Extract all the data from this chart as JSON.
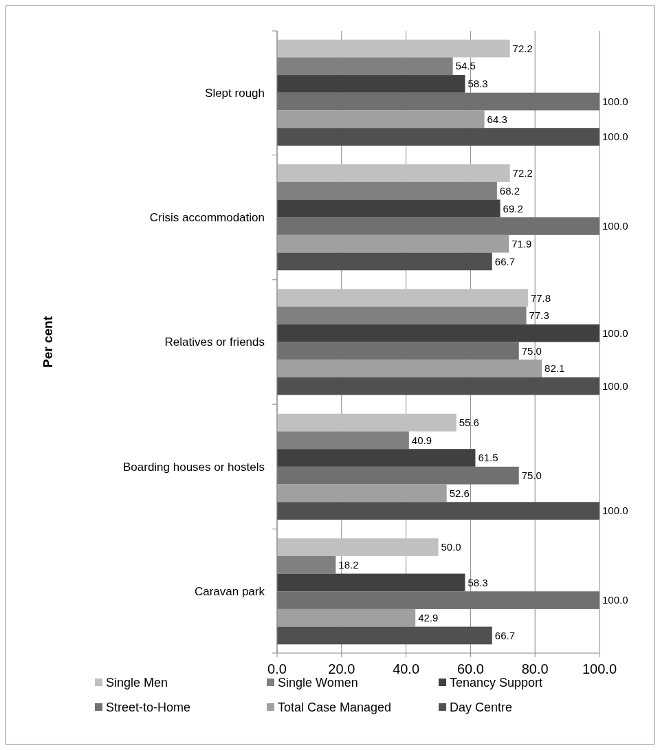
{
  "chart_data": {
    "type": "bar",
    "orientation": "horizontal",
    "annotations": [
      "Per cent"
    ],
    "categories": [
      "Slept rough",
      "Crisis  accommodation",
      "Relatives or friends",
      "Boarding houses or hostels",
      "Caravan park"
    ],
    "series": [
      {
        "name": "Single Men",
        "color": "#c0c0c0",
        "values": [
          72.2,
          72.2,
          77.8,
          55.6,
          50
        ],
        "value_labels": [
          "72.2",
          "72.2",
          "77.8",
          "55.6",
          "50.0"
        ]
      },
      {
        "name": "Single Women",
        "color": "#808080",
        "values": [
          54.5,
          68.2,
          77.3,
          40.9,
          18.2
        ],
        "value_labels": [
          "54.5",
          "68.2",
          "77.3",
          "40.9",
          "18.2"
        ]
      },
      {
        "name": "Tenancy Support",
        "color": "#404040",
        "values": [
          58.3,
          69.2,
          100,
          61.5,
          58.3
        ],
        "value_labels": [
          "58.3",
          "69.2",
          "100.0",
          "61.5",
          "58.3"
        ]
      },
      {
        "name": "Street-to-Home",
        "color": "#707070",
        "values": [
          100,
          100,
          75,
          75,
          100
        ],
        "value_labels": [
          "100.0",
          "100.0",
          "75.0",
          "75.0",
          "100.0"
        ]
      },
      {
        "name": "Total Case Managed",
        "color": "#a0a0a0",
        "values": [
          64.3,
          71.9,
          82.1,
          52.6,
          42.9
        ],
        "value_labels": [
          "64.3",
          "71.9",
          "82.1",
          "52.6",
          "42.9"
        ]
      },
      {
        "name": "Day Centre",
        "color": "#505050",
        "values": [
          100,
          66.7,
          100,
          100,
          66.7
        ],
        "value_labels": [
          "100.0",
          "66.7",
          "100.0",
          "100.0",
          "66.7"
        ]
      }
    ],
    "xlim": [
      0,
      100
    ],
    "xticks": [
      {
        "value": 0,
        "label": "0.0"
      },
      {
        "value": 20,
        "label": "20.0"
      },
      {
        "value": 40,
        "label": "40.0"
      },
      {
        "value": 60,
        "label": "60.0"
      },
      {
        "value": 80,
        "label": "80.0"
      },
      {
        "value": 100,
        "label": "100.0"
      }
    ],
    "grid": "x",
    "legend": "bottom"
  }
}
